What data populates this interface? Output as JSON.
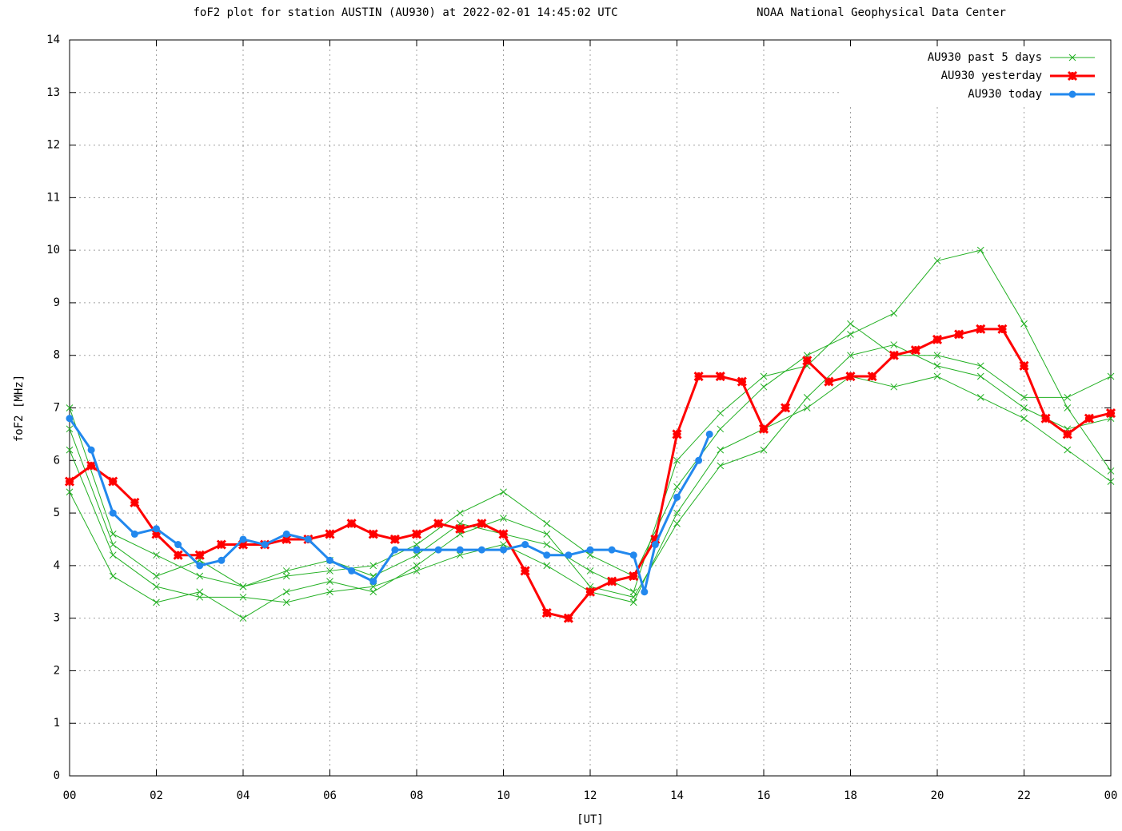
{
  "chart_data": {
    "type": "line",
    "title": "foF2 plot for station AUSTIN (AU930) at 2022-02-01 14:45:02 UTC",
    "subtitle": "NOAA National Geophysical Data Center",
    "ylabel": "foF2 [MHz]",
    "xlabel": "[UT]",
    "xlim": [
      0,
      24
    ],
    "ylim": [
      0,
      14
    ],
    "xticks": [
      {
        "value": 0,
        "label": "00"
      },
      {
        "value": 2,
        "label": "02"
      },
      {
        "value": 4,
        "label": "04"
      },
      {
        "value": 6,
        "label": "06"
      },
      {
        "value": 8,
        "label": "08"
      },
      10,
      12,
      14,
      16,
      18,
      20,
      22,
      {
        "value": 24,
        "label": "00"
      }
    ],
    "yticks": [
      0,
      1,
      2,
      3,
      4,
      5,
      6,
      7,
      8,
      9,
      10,
      11,
      12,
      13,
      14
    ],
    "grid": true,
    "legend": "top right",
    "series": [
      {
        "name": "AU930 past 5 days",
        "color": "#22b022",
        "marker": "x",
        "x": [
          0,
          1,
          2,
          3,
          4,
          5,
          6,
          7,
          8,
          9,
          10,
          11,
          12,
          13,
          14,
          15,
          16,
          17,
          18,
          19,
          20,
          21,
          22,
          23,
          24,
          null,
          0,
          1,
          2,
          3,
          4,
          5,
          6,
          7,
          8,
          9,
          10,
          11,
          12,
          13,
          14,
          15,
          16,
          17,
          18,
          19,
          20,
          21,
          22,
          23,
          24,
          null,
          0,
          1,
          2,
          3,
          4,
          5,
          6,
          7,
          8,
          9,
          10,
          11,
          12,
          13,
          14,
          15,
          16,
          17,
          18,
          19,
          20,
          21,
          22,
          23,
          24,
          null,
          0,
          1,
          2,
          3,
          4,
          5,
          6,
          7,
          8,
          9,
          10,
          11,
          12,
          13,
          14,
          15,
          16,
          17,
          18,
          19,
          20,
          21,
          22,
          23,
          24
        ],
        "values": [
          7.0,
          4.6,
          4.2,
          3.8,
          3.6,
          3.8,
          3.9,
          4.0,
          4.4,
          5.0,
          5.4,
          4.8,
          4.2,
          3.8,
          5.5,
          6.6,
          7.4,
          8.0,
          8.4,
          8.8,
          9.8,
          10.0,
          8.6,
          7.0,
          5.8,
          null,
          6.2,
          4.2,
          3.6,
          3.4,
          3.4,
          3.3,
          3.5,
          3.6,
          3.9,
          4.2,
          4.4,
          4.0,
          3.5,
          3.3,
          5.0,
          6.2,
          6.6,
          7.0,
          7.6,
          7.4,
          7.6,
          7.2,
          6.8,
          6.2,
          5.6,
          null,
          5.4,
          3.8,
          3.3,
          3.5,
          3.0,
          3.5,
          3.7,
          3.5,
          4.0,
          4.6,
          4.9,
          4.6,
          3.6,
          3.4,
          4.8,
          5.9,
          6.2,
          7.2,
          8.0,
          8.2,
          7.8,
          7.6,
          7.0,
          6.6,
          6.8,
          null,
          6.6,
          4.4,
          3.8,
          4.1,
          3.6,
          3.9,
          4.1,
          3.8,
          4.2,
          4.8,
          4.6,
          4.4,
          3.9,
          3.5,
          6.0,
          6.9,
          7.6,
          7.8,
          8.6,
          8.0,
          8.0,
          7.8,
          7.2,
          7.2,
          7.6
        ]
      },
      {
        "name": "AU930 yesterday",
        "color": "#ff0000",
        "marker": "star",
        "x": [
          0,
          0.5,
          1,
          1.5,
          2,
          2.5,
          3,
          3.5,
          4,
          4.5,
          5,
          5.5,
          6,
          6.5,
          7,
          7.5,
          8,
          8.5,
          9,
          9.5,
          10,
          10.5,
          11,
          11.5,
          12,
          12.5,
          13,
          13.5,
          14,
          14.5,
          15,
          15.5,
          16,
          16.5,
          17,
          17.5,
          18,
          18.5,
          19,
          19.5,
          20,
          20.5,
          21,
          21.5,
          22,
          22.5,
          23,
          23.5,
          24
        ],
        "values": [
          5.6,
          5.9,
          5.6,
          5.2,
          4.6,
          4.2,
          4.2,
          4.4,
          4.4,
          4.4,
          4.5,
          4.5,
          4.6,
          4.8,
          4.6,
          4.5,
          4.6,
          4.8,
          4.7,
          4.8,
          4.6,
          3.9,
          3.1,
          3.0,
          3.5,
          3.7,
          3.8,
          4.5,
          6.5,
          7.6,
          7.6,
          7.5,
          6.6,
          7.0,
          7.9,
          7.5,
          7.6,
          7.6,
          8.0,
          8.1,
          8.3,
          8.4,
          8.5,
          8.5,
          7.8,
          6.8,
          6.5,
          6.8,
          6.9
        ]
      },
      {
        "name": "AU930 today",
        "color": "#2288ee",
        "marker": "dot",
        "x": [
          0,
          0.5,
          1,
          1.5,
          2,
          2.5,
          3,
          3.5,
          4,
          4.5,
          5,
          5.5,
          6,
          6.5,
          7,
          7.5,
          8,
          8.5,
          9,
          9.5,
          10,
          10.5,
          11,
          11.5,
          12,
          12.5,
          13,
          13.25,
          13.5,
          14,
          14.5,
          14.75
        ],
        "values": [
          6.8,
          6.2,
          5.0,
          4.6,
          4.7,
          4.4,
          4.0,
          4.1,
          4.5,
          4.4,
          4.6,
          4.5,
          4.1,
          3.9,
          3.7,
          4.3,
          4.3,
          4.3,
          4.3,
          4.3,
          4.3,
          4.4,
          4.2,
          4.2,
          4.3,
          4.3,
          4.2,
          3.5,
          4.4,
          5.3,
          6.0,
          6.5
        ]
      }
    ]
  }
}
